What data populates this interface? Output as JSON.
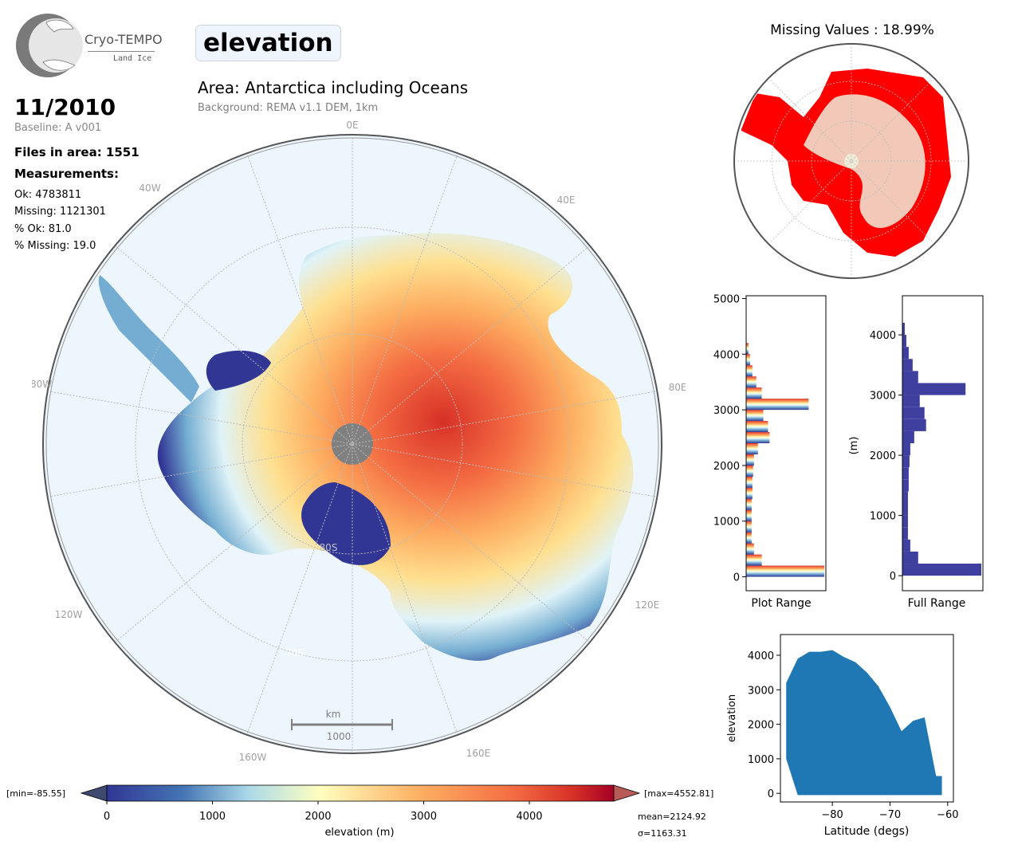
{
  "logo": {
    "title": "Cryo-TEMPO",
    "subtitle": "Land Ice"
  },
  "header": {
    "variable": "elevation",
    "area": "Area: Antarctica including Oceans",
    "background": "Background: REMA v1.1 DEM, 1km"
  },
  "info": {
    "date": "11/2010",
    "baseline": "Baseline: A v001",
    "files": "Files in area: 1551",
    "measurements": "Measurements:",
    "ok": "Ok: 4783811",
    "missing": "Missing: 1121301",
    "pct_ok": "% Ok: 81.0",
    "pct_missing": "% Missing: 19.0"
  },
  "map": {
    "lon_labels": [
      "0E",
      "40E",
      "80E",
      "120E",
      "160E",
      "160W",
      "120W",
      "80W",
      "40W"
    ],
    "lat_labels": [
      "80S",
      "70S"
    ],
    "scale_unit": "km",
    "scale_value": "1000"
  },
  "colorbar": {
    "min_label": "[min=-85.55]",
    "max_label": "[max=4552.81]",
    "label": "elevation (m)",
    "ticks": [
      "0",
      "1000",
      "2000",
      "3000",
      "4000"
    ],
    "mean": "mean=2124.92",
    "sigma": "σ=1163.31"
  },
  "missing_panel": {
    "title": "Missing Values : 18.99%"
  },
  "chart_data": [
    {
      "type": "bar",
      "orientation": "horizontal",
      "xlabel": "Plot Range",
      "ylabel": "",
      "ylim": [
        -250,
        5050
      ],
      "yticks": [
        "0",
        "1000",
        "2000",
        "3000",
        "4000",
        "5000"
      ],
      "bins": [
        0,
        200,
        400,
        600,
        800,
        1000,
        1200,
        1400,
        1600,
        1800,
        2000,
        2200,
        2400,
        2600,
        2800,
        3000,
        3200,
        3400,
        3600,
        3800,
        4000
      ],
      "values": [
        1.0,
        0.2,
        0.1,
        0.07,
        0.07,
        0.07,
        0.07,
        0.08,
        0.08,
        0.09,
        0.1,
        0.15,
        0.3,
        0.28,
        0.22,
        0.8,
        0.2,
        0.13,
        0.08,
        0.05,
        0.03
      ]
    },
    {
      "type": "bar",
      "orientation": "horizontal",
      "xlabel": "Full Range",
      "ylabel": "(m)",
      "ylim": [
        -250,
        4650
      ],
      "yticks": [
        "0",
        "1000",
        "2000",
        "3000",
        "4000"
      ],
      "bins": [
        0,
        200,
        400,
        600,
        800,
        1000,
        1200,
        1400,
        1600,
        1800,
        2000,
        2200,
        2400,
        2600,
        2800,
        3000,
        3200,
        3400,
        3600,
        3800,
        4000
      ],
      "values": [
        1.0,
        0.2,
        0.1,
        0.07,
        0.07,
        0.07,
        0.07,
        0.08,
        0.08,
        0.09,
        0.1,
        0.15,
        0.3,
        0.28,
        0.22,
        0.8,
        0.2,
        0.13,
        0.08,
        0.05,
        0.03
      ]
    },
    {
      "type": "scatter",
      "xlabel": "Latitude (degs)",
      "ylabel": "elevation",
      "xlim": [
        -89,
        -59
      ],
      "ylim": [
        -250,
        4600
      ],
      "xticks": [
        "−80",
        "−70",
        "−60"
      ],
      "yticks": [
        "0",
        "1000",
        "2000",
        "3000",
        "4000"
      ],
      "color": "#1f77b4",
      "envelope_x": [
        -88,
        -86,
        -84,
        -82,
        -80,
        -78,
        -76,
        -74,
        -72,
        -70,
        -68,
        -66,
        -64,
        -62,
        -61
      ],
      "envelope_upper": [
        3200,
        3900,
        4100,
        4100,
        4150,
        3950,
        3800,
        3500,
        3100,
        2500,
        1800,
        2100,
        2200,
        500,
        500
      ],
      "envelope_lower": [
        1000,
        -50,
        -50,
        -50,
        -50,
        -50,
        -50,
        -50,
        -50,
        -50,
        -50,
        -50,
        -50,
        -50,
        -50
      ]
    }
  ],
  "colors": {
    "ocean": "#eef6fd",
    "missing": "#ff0000",
    "pole_hole": "#808080",
    "hist_full": "#3f3f9f"
  }
}
